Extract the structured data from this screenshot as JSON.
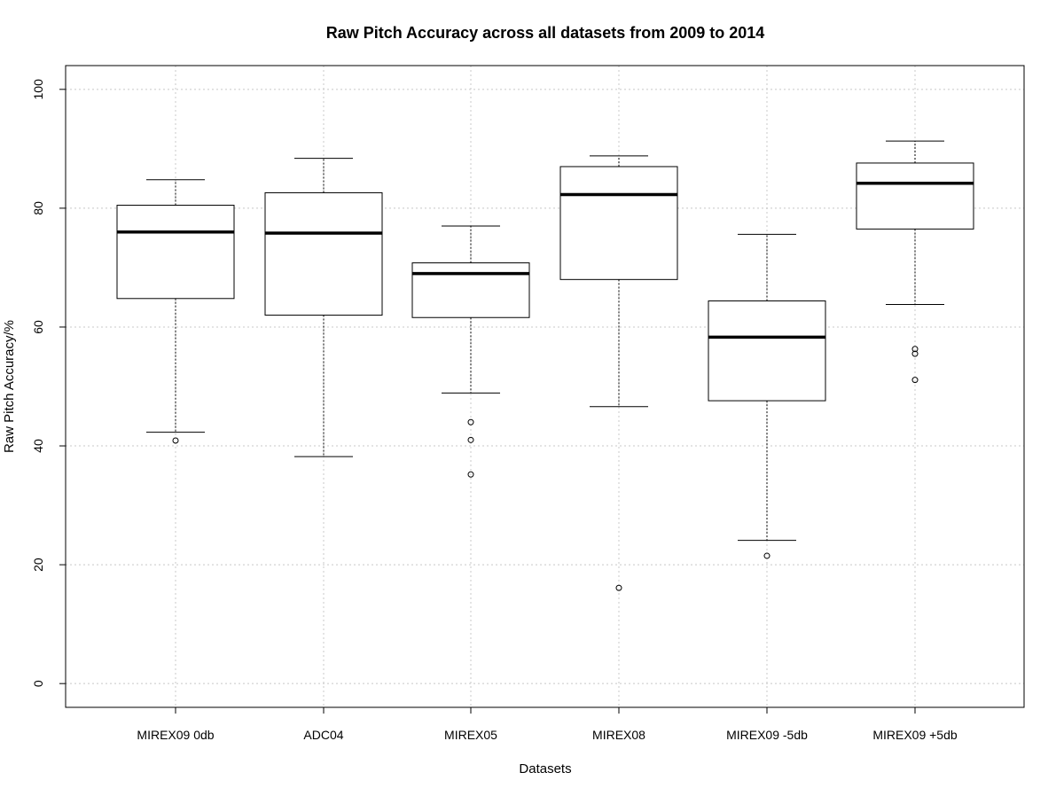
{
  "chart_data": {
    "type": "box",
    "title": "Raw Pitch Accuracy across all datasets from 2009 to 2014",
    "xlabel": "Datasets",
    "ylabel": "Raw Pitch Accuracy/%",
    "ylim": [
      -4,
      104
    ],
    "yticks": [
      "0",
      "20",
      "40",
      "60",
      "80",
      "100"
    ],
    "grid": true,
    "categories": [
      "MIREX09 0db",
      "ADC04",
      "MIREX05",
      "MIREX08",
      "MIREX09 -5db",
      "MIREX09 +5db"
    ],
    "boxes": [
      {
        "whisker_low": 42.3,
        "q1": 64.8,
        "median": 76.0,
        "q3": 80.5,
        "whisker_high": 84.8,
        "outliers": [
          40.9
        ]
      },
      {
        "whisker_low": 38.2,
        "q1": 62.0,
        "median": 75.8,
        "q3": 82.6,
        "whisker_high": 88.4,
        "outliers": []
      },
      {
        "whisker_low": 48.9,
        "q1": 61.6,
        "median": 69.0,
        "q3": 70.8,
        "whisker_high": 77.0,
        "outliers": [
          44.0,
          41.0,
          35.2
        ]
      },
      {
        "whisker_low": 46.6,
        "q1": 68.0,
        "median": 82.3,
        "q3": 87.0,
        "whisker_high": 88.8,
        "outliers": [
          16.1
        ]
      },
      {
        "whisker_low": 24.1,
        "q1": 47.6,
        "median": 58.3,
        "q3": 64.4,
        "whisker_high": 75.6,
        "outliers": [
          21.5
        ]
      },
      {
        "whisker_low": 63.8,
        "q1": 76.5,
        "median": 84.2,
        "q3": 87.6,
        "whisker_high": 91.3,
        "outliers": [
          56.3,
          55.5,
          51.1
        ]
      }
    ]
  }
}
